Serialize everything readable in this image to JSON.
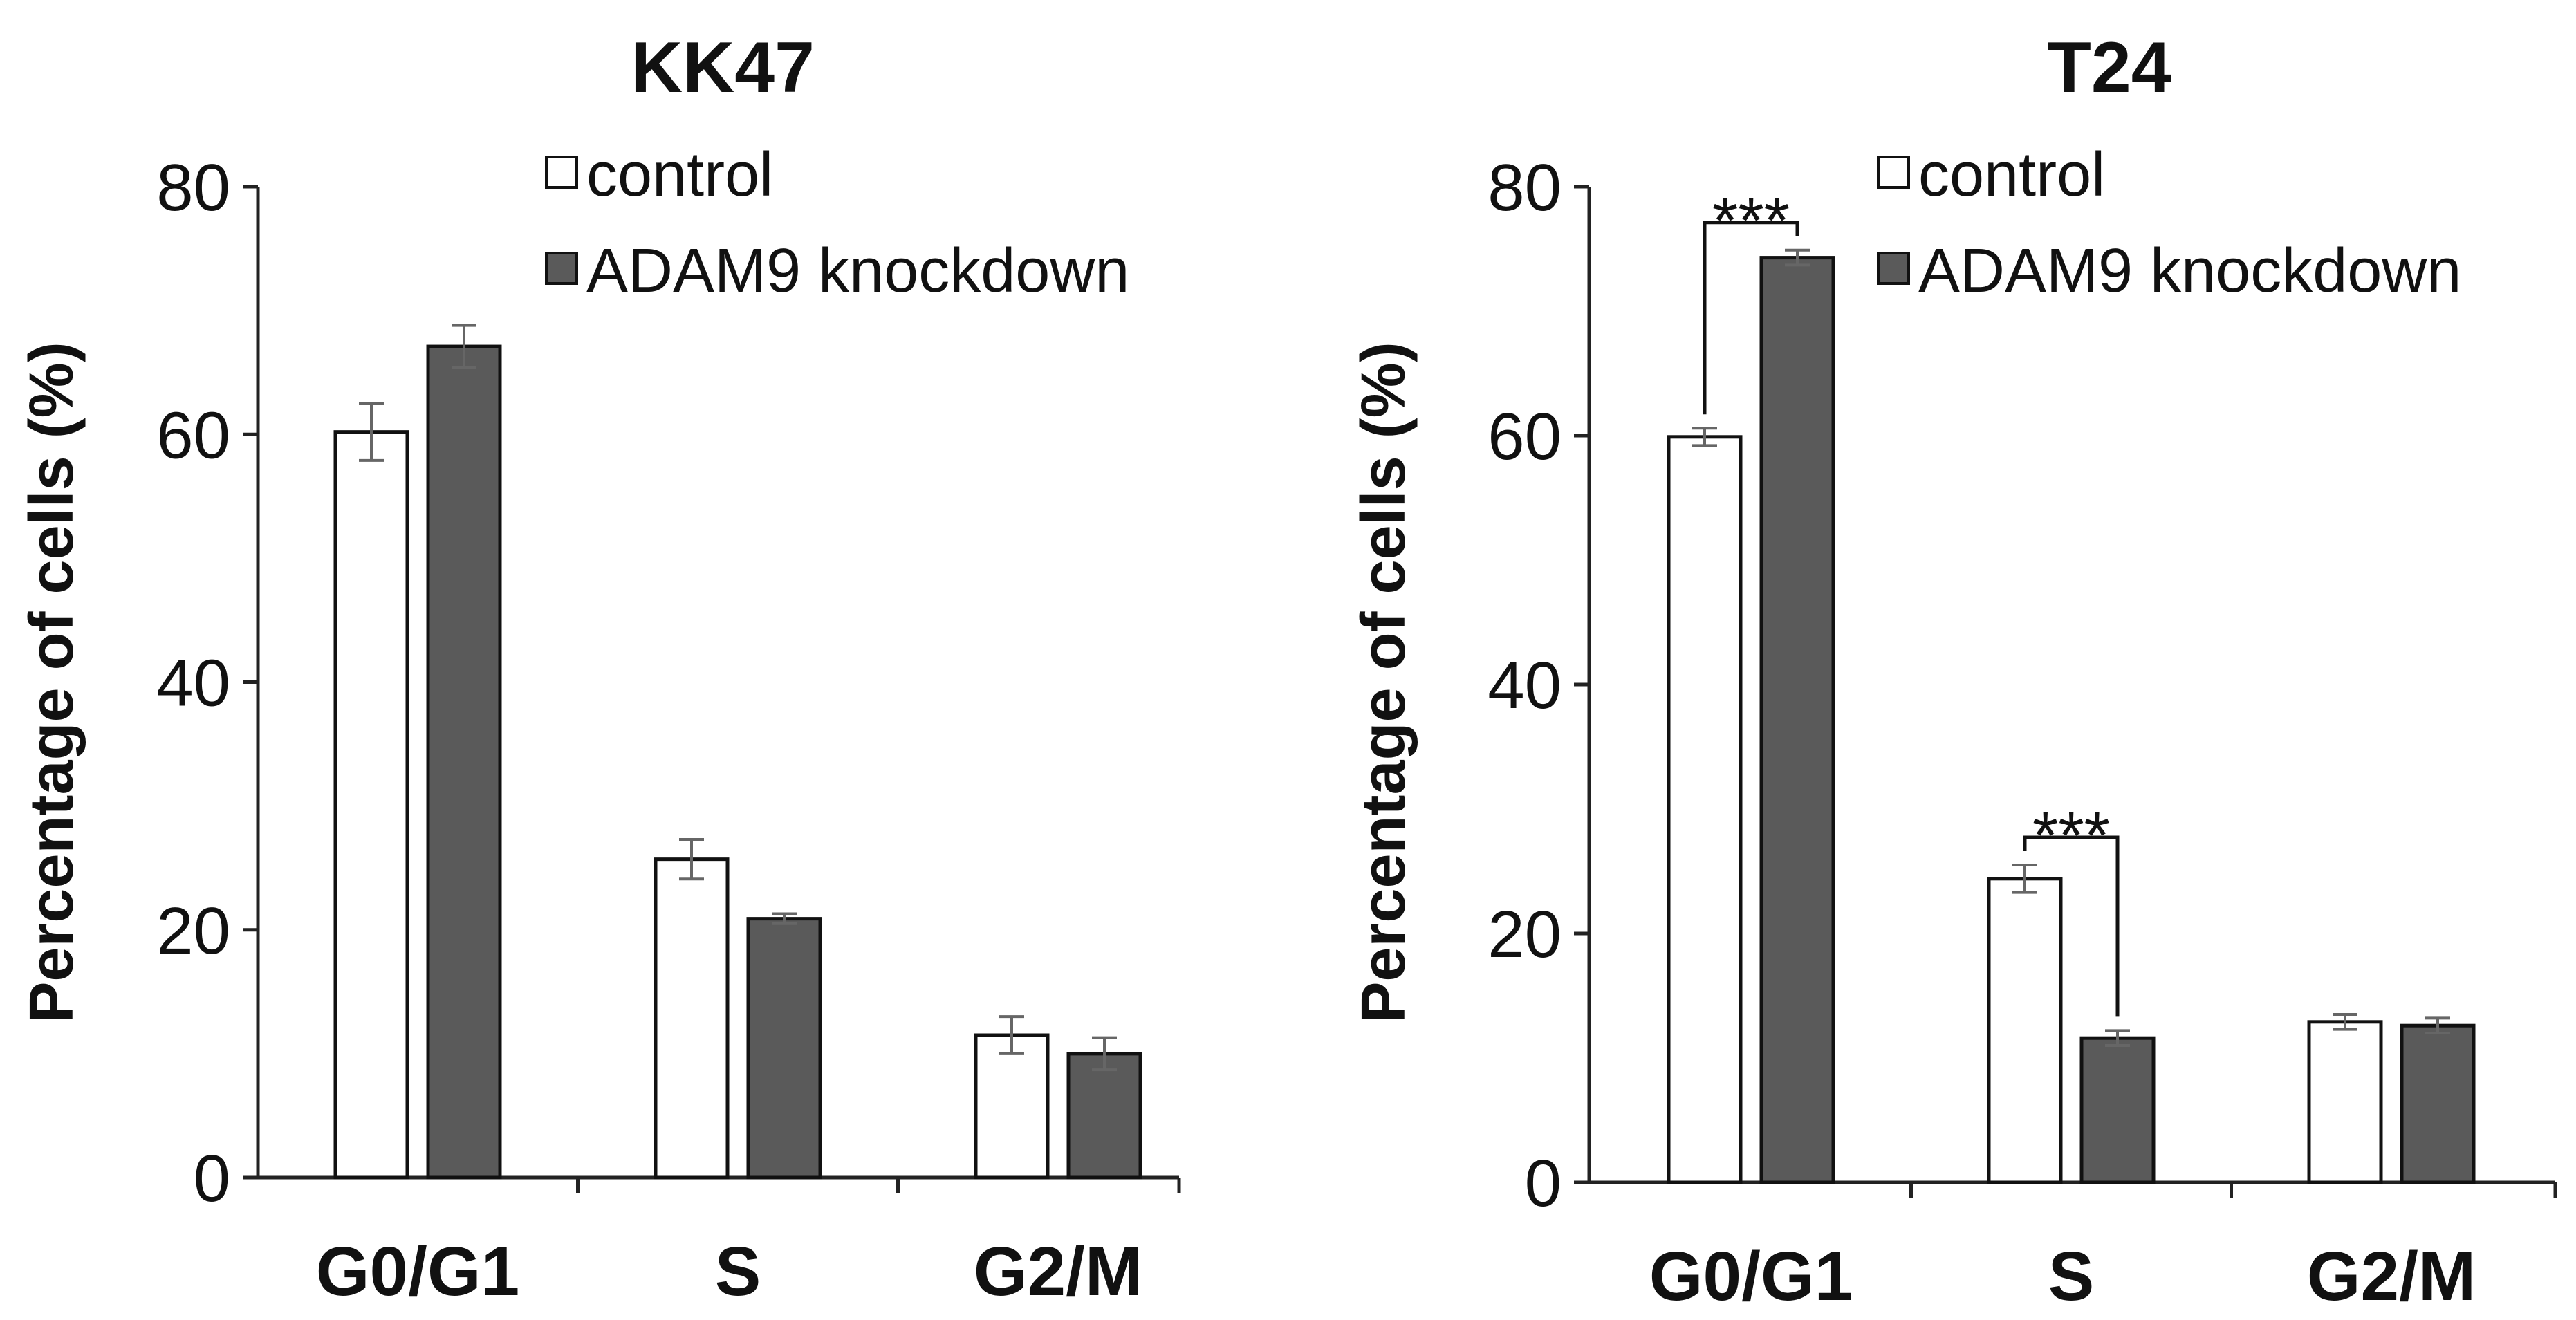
{
  "chart_data": [
    {
      "type": "bar",
      "title": "KK47",
      "ylabel": "Percentage of cells (%)",
      "xlabel": "",
      "ylim": [
        0,
        80
      ],
      "yticks": [
        "0",
        "20",
        "40",
        "60",
        "80"
      ],
      "categories": [
        "G0/G1",
        "S",
        "G2/M"
      ],
      "series": [
        {
          "name": "control",
          "color": "#ffffff",
          "values": [
            60.2,
            25.7,
            11.5
          ],
          "errors": [
            2.3,
            1.6,
            1.5
          ]
        },
        {
          "name": "ADAM9 knockdown",
          "color": "#5a5a5a",
          "values": [
            67.1,
            20.9,
            10.0
          ],
          "errors": [
            1.7,
            0.4,
            1.3
          ]
        }
      ],
      "annotations": []
    },
    {
      "type": "bar",
      "title": "T24",
      "ylabel": "Percentage of cells (%)",
      "xlabel": "",
      "ylim": [
        0,
        80
      ],
      "yticks": [
        "0",
        "20",
        "40",
        "60",
        "80"
      ],
      "categories": [
        "G0/G1",
        "S",
        "G2/M"
      ],
      "series": [
        {
          "name": "control",
          "color": "#ffffff",
          "values": [
            59.9,
            24.4,
            12.9
          ],
          "errors": [
            0.7,
            1.1,
            0.6
          ]
        },
        {
          "name": "ADAM9 knockdown",
          "color": "#5a5a5a",
          "values": [
            74.3,
            11.6,
            12.6
          ],
          "errors": [
            0.6,
            0.6,
            0.6
          ]
        }
      ],
      "annotations": [
        {
          "category": "G0/G1",
          "label": "***"
        },
        {
          "category": "S",
          "label": "***"
        }
      ]
    }
  ]
}
